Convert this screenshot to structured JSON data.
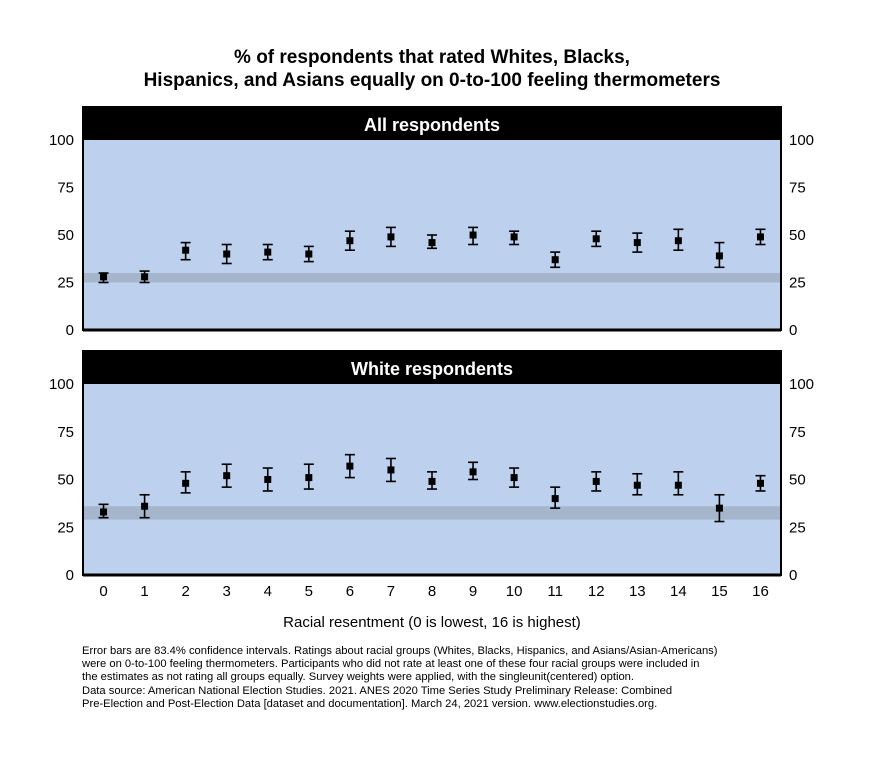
{
  "title_lines": [
    "% of respondents that rated Whites, Blacks,",
    "Hispanics, and Asians equally on 0-to-100 feeling thermometers"
  ],
  "xlabel": "Racial resentment (0 is lowest, 16 is highest)",
  "footnote_lines": [
    "Error bars are 83.4% confidence intervals. Ratings about racial groups (Whites, Blacks, Hispanics, and Asians/Asian-Americans)",
    "were on 0-to-100 feeling thermometers. Participants who did not rate at least one of these four racial groups were included in",
    "the estimates as not rating all groups equally. Survey weights were applied, with the singleunit(centered) option.",
    "Data source: American National Election Studies. 2021. ANES 2020 Time Series Study Preliminary Release: Combined",
    "Pre-Election and Post-Election Data [dataset and documentation]. March 24, 2021 version. www.electionstudies.org."
  ],
  "colors": {
    "panel_background": "#bdd1ee",
    "reference_band": "#a5b6cc",
    "panel_header": "#000000",
    "marker": "#000000"
  },
  "chart_data": [
    {
      "type": "scatter",
      "title": "All respondents",
      "x": [
        0,
        1,
        2,
        3,
        4,
        5,
        6,
        7,
        8,
        9,
        10,
        11,
        12,
        13,
        14,
        15,
        16
      ],
      "y": [
        28,
        28,
        42,
        40,
        41,
        40,
        47,
        49,
        46,
        50,
        49,
        37,
        48,
        46,
        47,
        39,
        49
      ],
      "ci_low": [
        25,
        25,
        37,
        35,
        37,
        36,
        42,
        44,
        43,
        45,
        45,
        33,
        44,
        41,
        42,
        33,
        45
      ],
      "ci_high": [
        30,
        31,
        46,
        45,
        45,
        44,
        52,
        54,
        50,
        54,
        52,
        41,
        52,
        51,
        53,
        46,
        53
      ],
      "reference_band": [
        25,
        30
      ],
      "ylim": [
        0,
        100
      ],
      "yticks": [
        0,
        25,
        50,
        75,
        100
      ],
      "xlim": [
        -0.5,
        16.5
      ],
      "grid": false,
      "y_axis_both_sides": true
    },
    {
      "type": "scatter",
      "title": "White respondents",
      "x": [
        0,
        1,
        2,
        3,
        4,
        5,
        6,
        7,
        8,
        9,
        10,
        11,
        12,
        13,
        14,
        15,
        16
      ],
      "y": [
        33,
        36,
        48,
        52,
        50,
        51,
        57,
        55,
        49,
        54,
        51,
        40,
        49,
        47,
        47,
        35,
        48
      ],
      "ci_low": [
        30,
        30,
        43,
        46,
        44,
        45,
        51,
        49,
        45,
        50,
        46,
        35,
        44,
        42,
        42,
        28,
        44
      ],
      "ci_high": [
        37,
        42,
        54,
        58,
        56,
        58,
        63,
        61,
        54,
        59,
        56,
        46,
        54,
        53,
        54,
        42,
        52
      ],
      "reference_band": [
        29,
        36
      ],
      "ylim": [
        0,
        100
      ],
      "yticks": [
        0,
        25,
        50,
        75,
        100
      ],
      "xlim": [
        -0.5,
        16.5
      ],
      "grid": false,
      "y_axis_both_sides": true
    }
  ]
}
